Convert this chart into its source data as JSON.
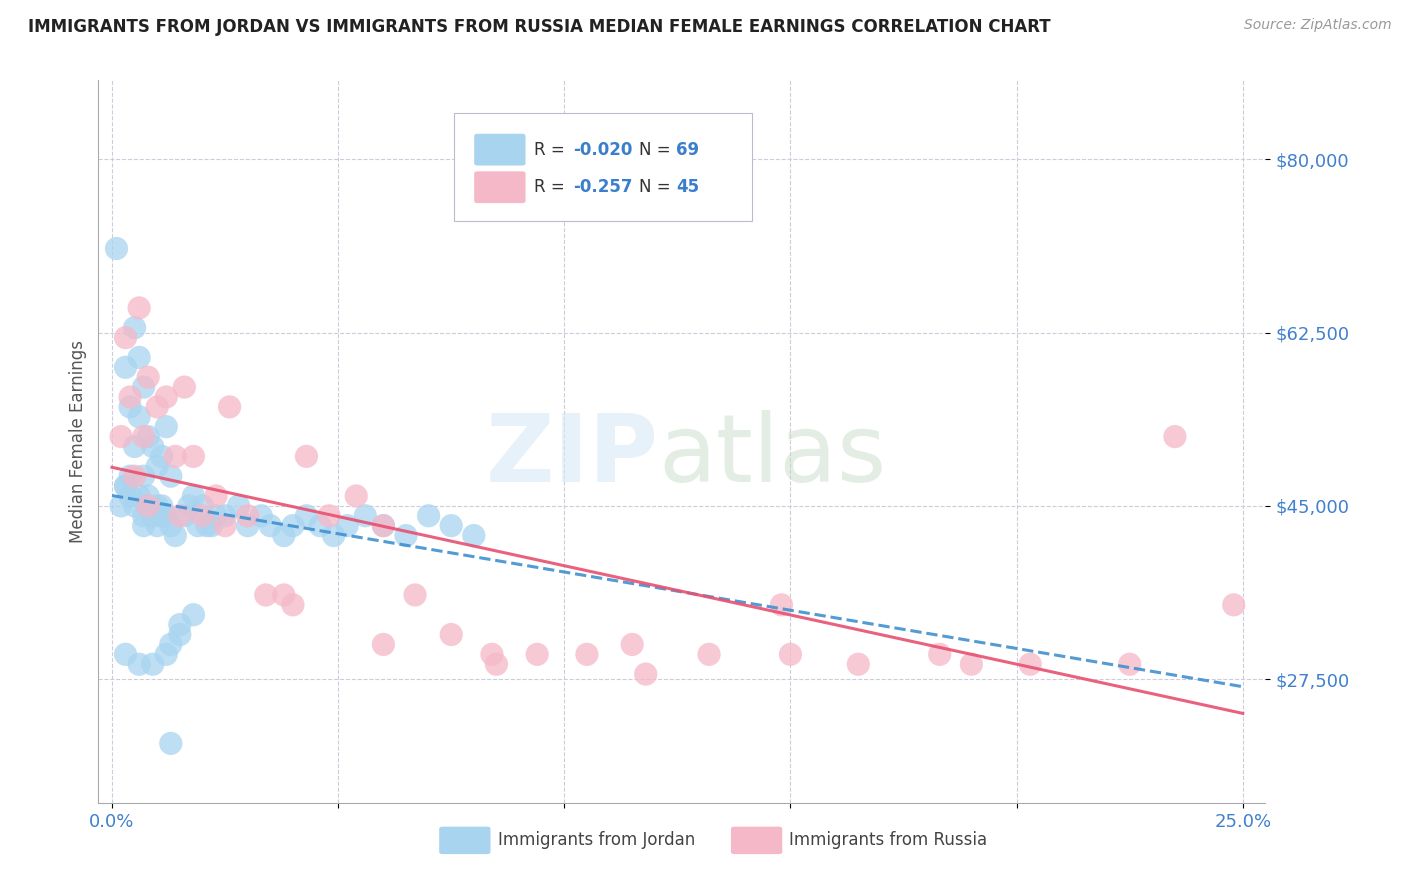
{
  "title": "IMMIGRANTS FROM JORDAN VS IMMIGRANTS FROM RUSSIA MEDIAN FEMALE EARNINGS CORRELATION CHART",
  "source": "Source: ZipAtlas.com",
  "ylabel": "Median Female Earnings",
  "yticks": [
    27500,
    45000,
    62500,
    80000
  ],
  "ytick_labels": [
    "$27,500",
    "$45,000",
    "$62,500",
    "$80,000"
  ],
  "color_jordan": "#A8D4F0",
  "color_russia": "#F5B8C8",
  "color_jordan_line": "#4090D0",
  "color_russia_line": "#E85070",
  "jordan_R": -0.02,
  "jordan_N": 69,
  "russia_R": -0.257,
  "russia_N": 45,
  "jordan_x": [
    0.001,
    0.002,
    0.003,
    0.003,
    0.004,
    0.004,
    0.005,
    0.005,
    0.006,
    0.006,
    0.007,
    0.007,
    0.008,
    0.008,
    0.009,
    0.009,
    0.01,
    0.01,
    0.011,
    0.011,
    0.012,
    0.012,
    0.013,
    0.013,
    0.014,
    0.015,
    0.016,
    0.017,
    0.018,
    0.019,
    0.02,
    0.021,
    0.023,
    0.025,
    0.028,
    0.03,
    0.033,
    0.035,
    0.038,
    0.04,
    0.043,
    0.046,
    0.049,
    0.052,
    0.056,
    0.06,
    0.065,
    0.07,
    0.075,
    0.08,
    0.003,
    0.004,
    0.005,
    0.006,
    0.007,
    0.007,
    0.008,
    0.009,
    0.01,
    0.011,
    0.012,
    0.013,
    0.015,
    0.018,
    0.022,
    0.003,
    0.006,
    0.009,
    0.013
  ],
  "jordan_y": [
    71000,
    45000,
    59000,
    47000,
    55000,
    48000,
    63000,
    51000,
    60000,
    54000,
    57000,
    48000,
    52000,
    46000,
    51000,
    44000,
    49000,
    43000,
    50000,
    45000,
    53000,
    44000,
    48000,
    43000,
    42000,
    32000,
    44000,
    45000,
    46000,
    43000,
    45000,
    43000,
    44000,
    44000,
    45000,
    43000,
    44000,
    43000,
    42000,
    43000,
    44000,
    43000,
    42000,
    43000,
    44000,
    43000,
    42000,
    44000,
    43000,
    42000,
    47000,
    46000,
    45000,
    46000,
    44000,
    43000,
    45000,
    44000,
    45000,
    44000,
    30000,
    31000,
    33000,
    34000,
    43000,
    30000,
    29000,
    29000,
    21000
  ],
  "russia_x": [
    0.002,
    0.003,
    0.004,
    0.005,
    0.006,
    0.007,
    0.008,
    0.01,
    0.012,
    0.014,
    0.016,
    0.018,
    0.02,
    0.023,
    0.026,
    0.03,
    0.034,
    0.038,
    0.043,
    0.048,
    0.054,
    0.06,
    0.067,
    0.075,
    0.084,
    0.094,
    0.105,
    0.118,
    0.132,
    0.148,
    0.165,
    0.183,
    0.203,
    0.225,
    0.248,
    0.008,
    0.015,
    0.025,
    0.04,
    0.06,
    0.085,
    0.115,
    0.15,
    0.19,
    0.235
  ],
  "russia_y": [
    52000,
    62000,
    56000,
    48000,
    65000,
    52000,
    58000,
    55000,
    56000,
    50000,
    57000,
    50000,
    44000,
    46000,
    55000,
    44000,
    36000,
    36000,
    50000,
    44000,
    46000,
    43000,
    36000,
    32000,
    30000,
    30000,
    30000,
    28000,
    30000,
    35000,
    29000,
    30000,
    29000,
    29000,
    35000,
    45000,
    44000,
    43000,
    35000,
    31000,
    29000,
    31000,
    30000,
    29000,
    52000
  ]
}
